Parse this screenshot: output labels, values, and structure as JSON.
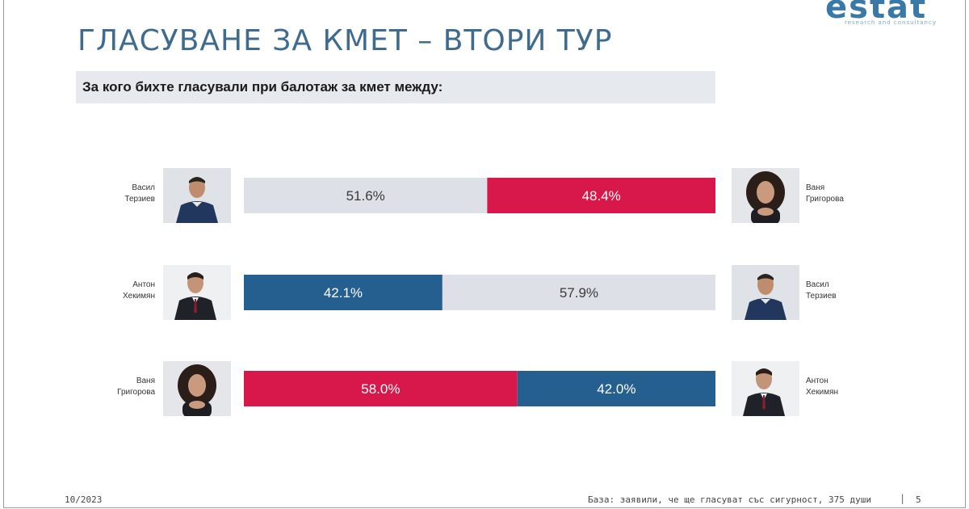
{
  "header": {
    "logo_text": "estat",
    "logo_subtitle": "research and consultancy",
    "title": "ГЛАСУВАНЕ ЗА КМЕТ – ВТОРИ ТУР",
    "question": "За кого бихте гласували при балотаж за кмет между:"
  },
  "colors": {
    "red": "#d8174a",
    "blue": "#245f8f",
    "gray": "#dde0e6",
    "label_on_dark": "#ffffff",
    "label_on_light": "#3a3a3a"
  },
  "chart_data": {
    "type": "bar",
    "orientation": "horizontal",
    "stacked": true,
    "unit": "%",
    "xlim": [
      0,
      100
    ],
    "rows": [
      {
        "left": {
          "name_line1": "Васил",
          "name_line2": "Терзиев",
          "value": 51.6,
          "label": "51.6%",
          "color": "#dde0e6",
          "photo": "man-sweater-photo"
        },
        "right": {
          "name_line1": "Ваня",
          "name_line2": "Григорова",
          "value": 48.4,
          "label": "48.4%",
          "color": "#d8174a",
          "photo": "woman-curly-hair-photo"
        }
      },
      {
        "left": {
          "name_line1": "Антон",
          "name_line2": "Хекимян",
          "value": 42.1,
          "label": "42.1%",
          "color": "#245f8f",
          "photo": "man-suit-photo"
        },
        "right": {
          "name_line1": "Васил",
          "name_line2": "Терзиев",
          "value": 57.9,
          "label": "57.9%",
          "color": "#dde0e6",
          "photo": "man-sweater-photo"
        }
      },
      {
        "left": {
          "name_line1": "Ваня",
          "name_line2": "Григорова",
          "value": 58.0,
          "label": "58.0%",
          "color": "#d8174a",
          "photo": "woman-curly-hair-photo"
        },
        "right": {
          "name_line1": "Антон",
          "name_line2": "Хекимян",
          "value": 42.0,
          "label": "42.0%",
          "color": "#245f8f",
          "photo": "man-suit-photo"
        }
      }
    ]
  },
  "footer": {
    "date": "10/2023",
    "base": "База: заявили, че ще гласуват със сигурност, 375 души",
    "separator": "|",
    "page": "5"
  }
}
